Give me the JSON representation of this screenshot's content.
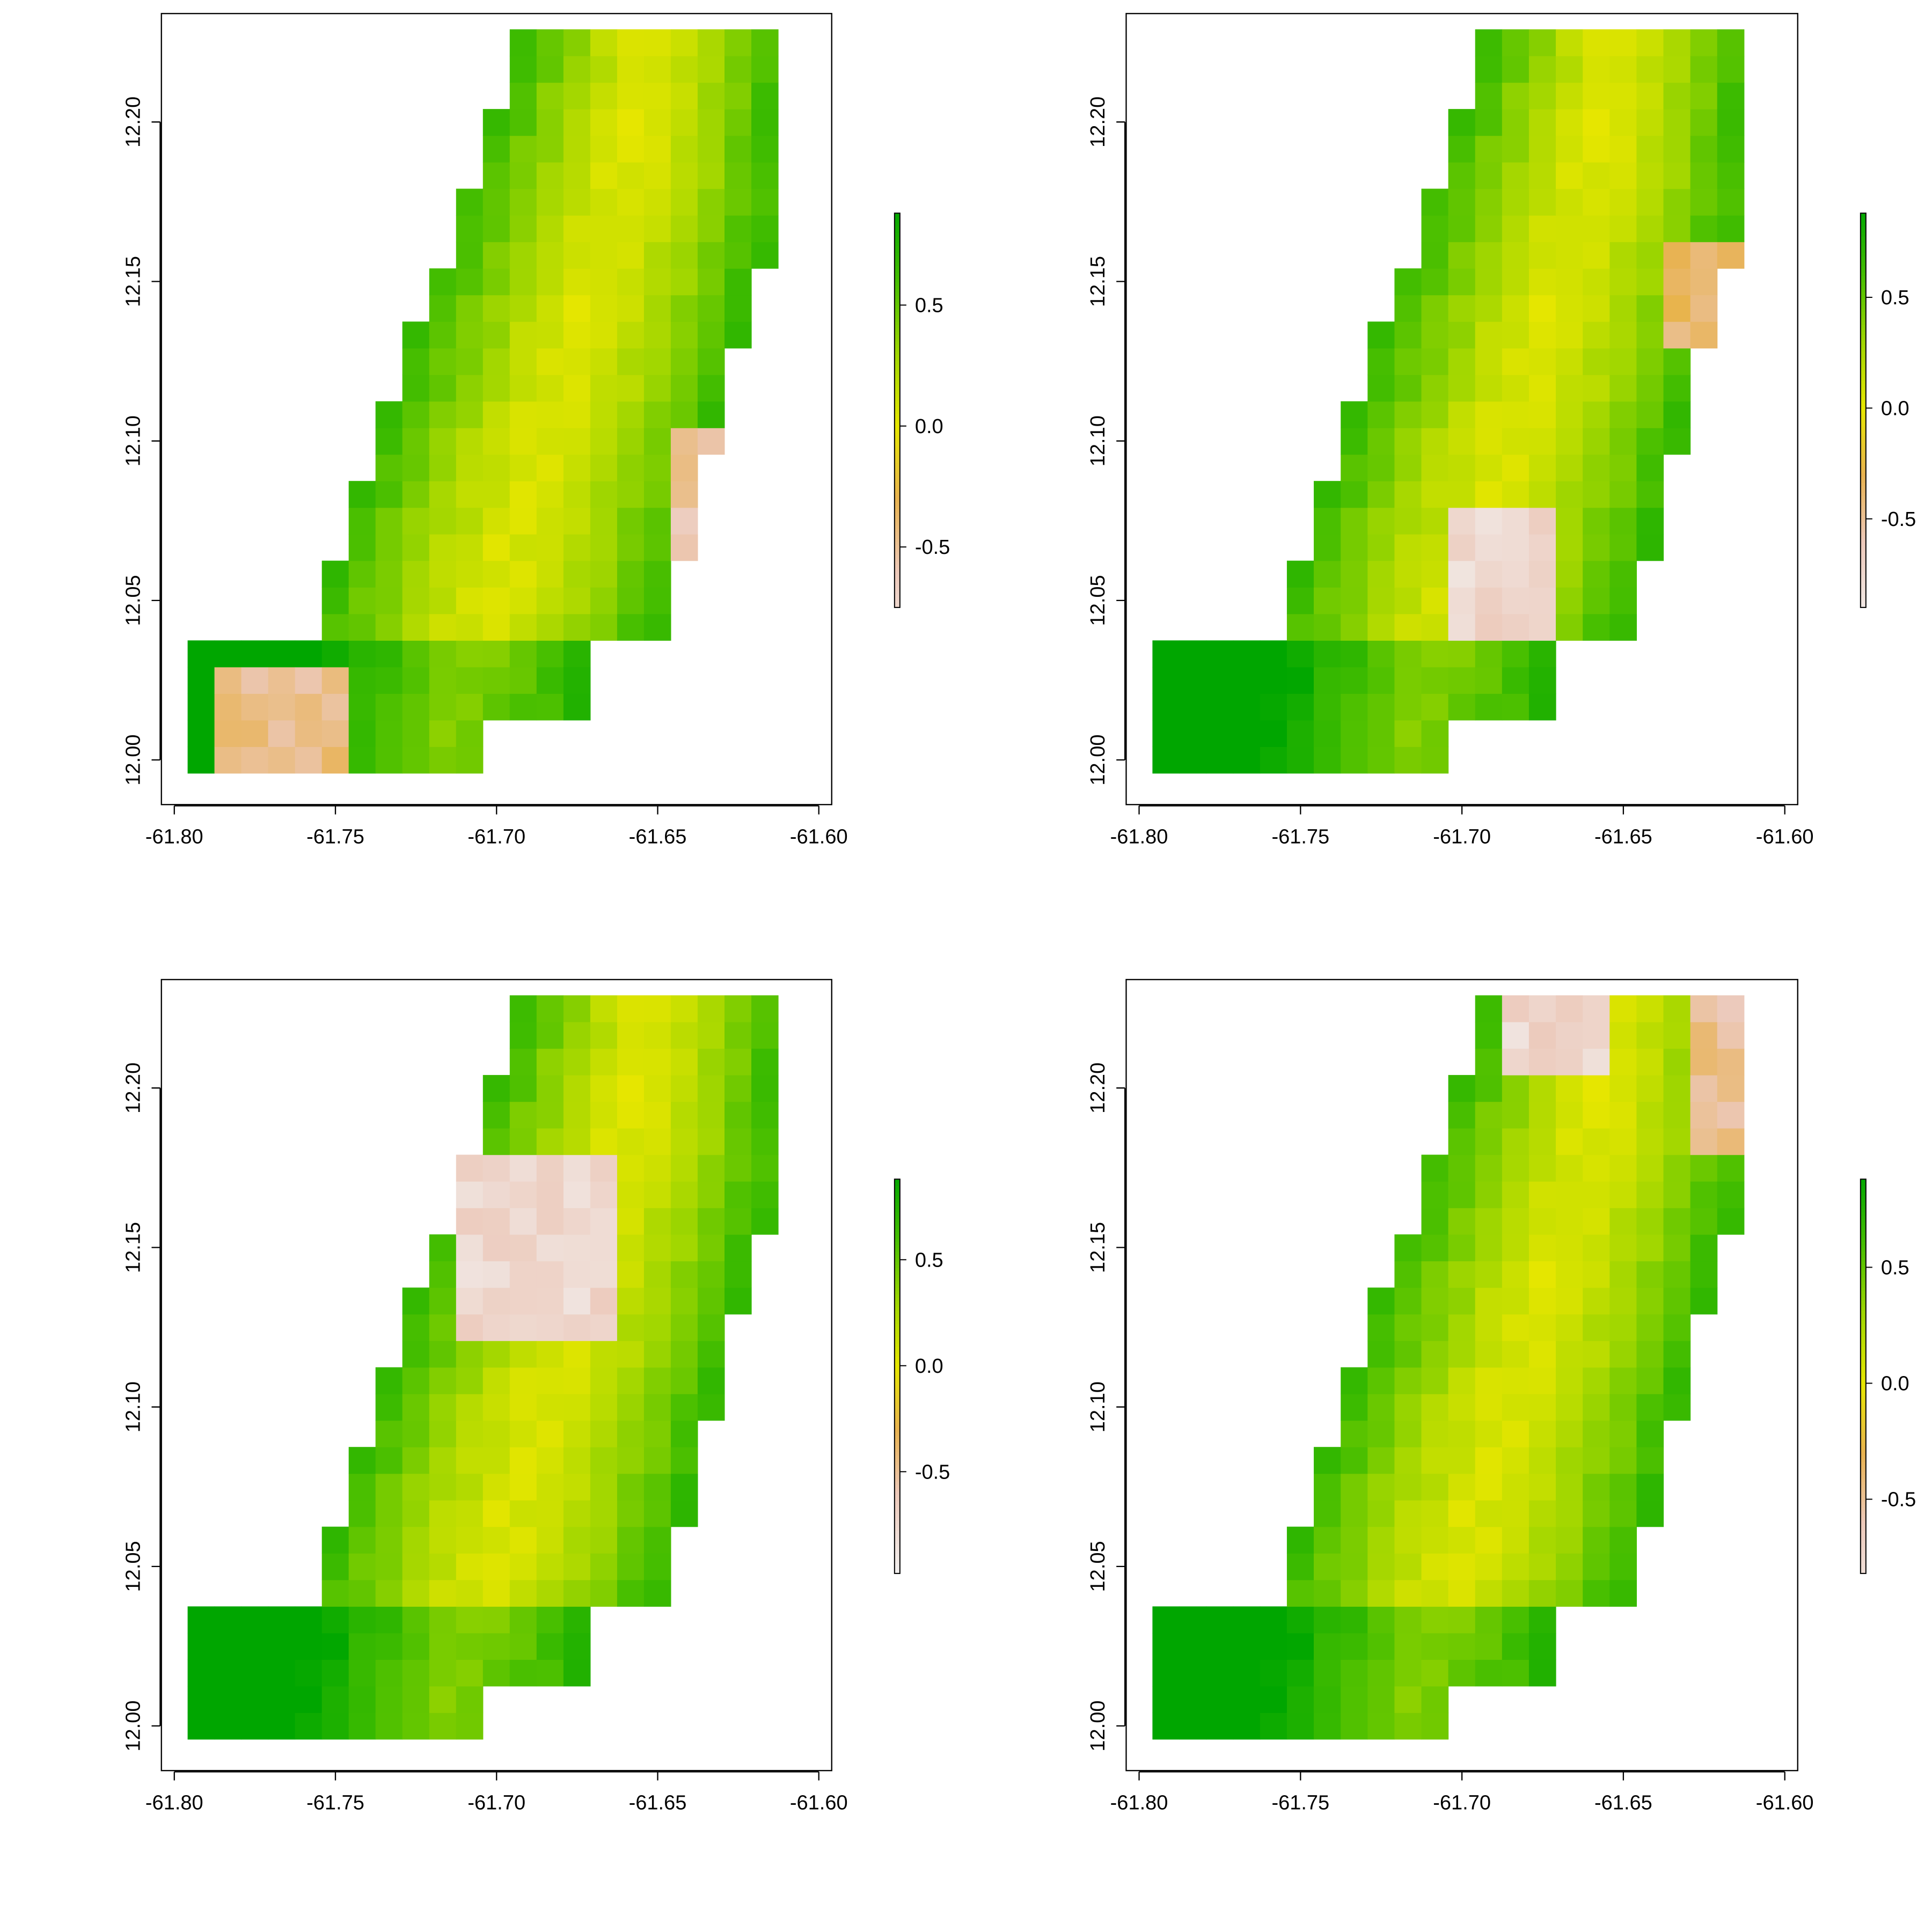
{
  "chart_data": [
    {
      "type": "heatmap",
      "title": "",
      "xlabel": "",
      "ylabel": "",
      "xlim": [
        -61.804,
        -61.596
      ],
      "ylim": [
        11.986,
        12.234
      ],
      "x_ticks": [
        "-61.80",
        "-61.75",
        "-61.70",
        "-61.65",
        "-61.60"
      ],
      "y_ticks": [
        "12.00",
        "12.05",
        "12.10",
        "12.15",
        "12.20"
      ],
      "legend": {
        "ticks": [
          "0.5",
          "0.0",
          "-0.5"
        ],
        "range": [
          -0.75,
          0.88
        ]
      },
      "grid": false,
      "low_patches": [
        {
          "x": [
            -61.785,
            -61.745
          ],
          "y": [
            11.992,
            12.032
          ],
          "value": -0.45
        },
        {
          "x": [
            -61.65,
            -61.625
          ],
          "y": [
            12.06,
            12.1
          ],
          "value": -0.55
        }
      ]
    },
    {
      "type": "heatmap",
      "title": "",
      "xlabel": "",
      "ylabel": "",
      "xlim": [
        -61.804,
        -61.596
      ],
      "ylim": [
        11.986,
        12.234
      ],
      "x_ticks": [
        "-61.80",
        "-61.75",
        "-61.70",
        "-61.65",
        "-61.60"
      ],
      "y_ticks": [
        "12.00",
        "12.05",
        "12.10",
        "12.15",
        "12.20"
      ],
      "legend": {
        "ticks": [
          "0.5",
          "0.0",
          "-0.5"
        ],
        "range": [
          -0.9,
          0.88
        ]
      },
      "grid": false,
      "low_patches": [
        {
          "x": [
            -61.705,
            -61.668
          ],
          "y": [
            12.035,
            12.082
          ],
          "value": -0.75
        },
        {
          "x": [
            -61.635,
            -61.608
          ],
          "y": [
            12.125,
            12.165
          ],
          "value": -0.4
        }
      ]
    },
    {
      "type": "heatmap",
      "title": "",
      "xlabel": "",
      "ylabel": "",
      "xlim": [
        -61.804,
        -61.596
      ],
      "ylim": [
        11.986,
        12.234
      ],
      "x_ticks": [
        "-61.80",
        "-61.75",
        "-61.70",
        "-61.65",
        "-61.60"
      ],
      "y_ticks": [
        "12.00",
        "12.05",
        "12.10",
        "12.15",
        "12.20"
      ],
      "legend": {
        "ticks": [
          "0.5",
          "0.0",
          "-0.5"
        ],
        "range": [
          -0.98,
          0.88
        ]
      },
      "grid": false,
      "low_patches": [
        {
          "x": [
            -61.712,
            -61.662
          ],
          "y": [
            12.118,
            12.182
          ],
          "value": -0.75
        }
      ]
    },
    {
      "type": "heatmap",
      "title": "",
      "xlabel": "",
      "ylabel": "",
      "xlim": [
        -61.804,
        -61.596
      ],
      "ylim": [
        11.986,
        12.234
      ],
      "x_ticks": [
        "-61.80",
        "-61.75",
        "-61.70",
        "-61.65",
        "-61.60"
      ],
      "y_ticks": [
        "12.00",
        "12.05",
        "12.10",
        "12.15",
        "12.20"
      ],
      "legend": {
        "ticks": [
          "0.5",
          "0.0",
          "-0.5"
        ],
        "range": [
          -0.82,
          0.88
        ]
      },
      "grid": false,
      "low_patches": [
        {
          "x": [
            -61.69,
            -61.655
          ],
          "y": [
            12.205,
            12.234
          ],
          "value": -0.75
        },
        {
          "x": [
            -61.628,
            -61.6
          ],
          "y": [
            12.175,
            12.225
          ],
          "value": -0.5
        }
      ]
    }
  ]
}
